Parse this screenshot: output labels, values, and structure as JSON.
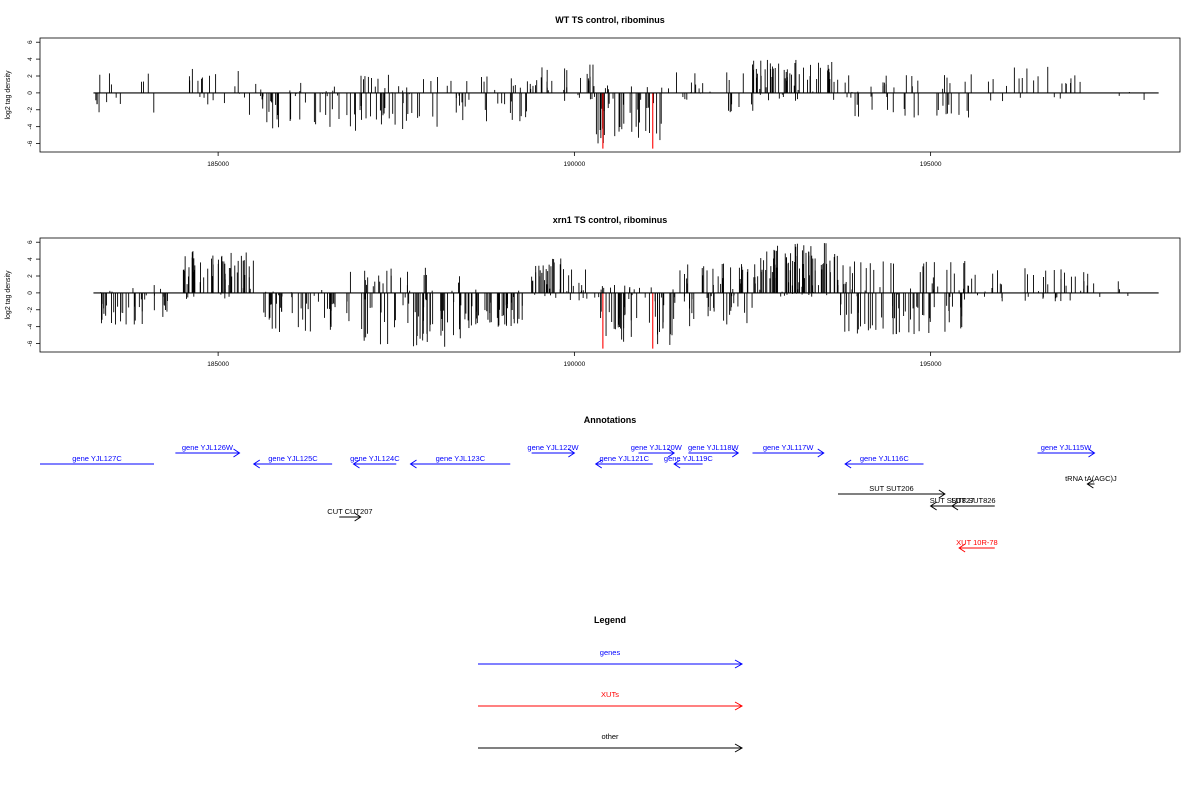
{
  "chart_data": [
    {
      "type": "bar",
      "title": "WT TS control, ribominus",
      "ylabel": "log2 tag density",
      "xlim": [
        182500,
        198500
      ],
      "ylim": [
        -7,
        6.5
      ],
      "xticks": [
        185000,
        190000,
        195000
      ],
      "xtick_labels": [
        "185000",
        "190000",
        "195000"
      ],
      "yticks": [
        6,
        4,
        2,
        0,
        -2,
        -4,
        -6
      ],
      "ytick_labels": [
        "6",
        "4",
        "2",
        "0",
        "-2",
        "-4",
        "-6"
      ],
      "baseline_range": [
        183250,
        198200
      ],
      "marker_color": "#ff0000",
      "markers": [
        {
          "x": 190400,
          "y": -6.6
        },
        {
          "x": 191100,
          "y": -6.6
        }
      ],
      "segments": [
        {
          "from": 183250,
          "to": 184300,
          "y_min": -3.0,
          "y_max": 2.8,
          "count": 14,
          "seed": 11
        },
        {
          "from": 184500,
          "to": 185400,
          "y_min": -1.5,
          "y_max": 3.2,
          "count": 18,
          "seed": 12
        },
        {
          "from": 185400,
          "to": 186700,
          "y_min": -4.2,
          "y_max": 1.2,
          "count": 40,
          "seed": 13
        },
        {
          "from": 186800,
          "to": 188200,
          "y_min": -4.5,
          "y_max": 2.6,
          "count": 45,
          "seed": 14
        },
        {
          "from": 188200,
          "to": 189400,
          "y_min": -3.5,
          "y_max": 2.0,
          "count": 35,
          "seed": 15
        },
        {
          "from": 189400,
          "to": 190300,
          "y_min": -1.0,
          "y_max": 3.5,
          "count": 28,
          "seed": 16
        },
        {
          "from": 190300,
          "to": 191400,
          "y_min": -6.0,
          "y_max": 1.0,
          "count": 40,
          "seed": 17
        },
        {
          "from": 191400,
          "to": 192600,
          "y_min": -2.5,
          "y_max": 2.5,
          "count": 22,
          "seed": 18
        },
        {
          "from": 192500,
          "to": 193700,
          "y_min": -1.0,
          "y_max": 4.0,
          "count": 60,
          "seed": 19
        },
        {
          "from": 193700,
          "to": 195600,
          "y_min": -3.0,
          "y_max": 2.2,
          "count": 45,
          "seed": 20
        },
        {
          "from": 195600,
          "to": 197500,
          "y_min": -1.0,
          "y_max": 3.2,
          "count": 22,
          "seed": 21
        },
        {
          "from": 197500,
          "to": 198100,
          "y_min": -1.0,
          "y_max": 1.2,
          "count": 3,
          "seed": 22
        }
      ]
    },
    {
      "type": "bar",
      "title": "xrn1 TS control, ribominus",
      "ylabel": "log2 tag density",
      "xlim": [
        182500,
        198500
      ],
      "ylim": [
        -7,
        6.5
      ],
      "xticks": [
        185000,
        190000,
        195000
      ],
      "xtick_labels": [
        "185000",
        "190000",
        "195000"
      ],
      "yticks": [
        6,
        4,
        2,
        0,
        -2,
        -4,
        -6
      ],
      "ytick_labels": [
        "6",
        "4",
        "2",
        "0",
        "-2",
        "-4",
        "-6"
      ],
      "baseline_range": [
        183250,
        198200
      ],
      "marker_color": "#ff0000",
      "markers": [
        {
          "x": 190400,
          "y": -6.6
        },
        {
          "x": 191100,
          "y": -6.6
        }
      ],
      "segments": [
        {
          "from": 183250,
          "to": 184300,
          "y_min": -3.8,
          "y_max": 1.0,
          "count": 40,
          "seed": 31
        },
        {
          "from": 184500,
          "to": 185500,
          "y_min": -1.0,
          "y_max": 5.0,
          "count": 60,
          "seed": 32
        },
        {
          "from": 185600,
          "to": 186700,
          "y_min": -5.0,
          "y_max": 0.5,
          "count": 45,
          "seed": 33
        },
        {
          "from": 186800,
          "to": 188400,
          "y_min": -6.5,
          "y_max": 3.0,
          "count": 75,
          "seed": 34
        },
        {
          "from": 188400,
          "to": 189300,
          "y_min": -4.2,
          "y_max": 0.5,
          "count": 45,
          "seed": 35
        },
        {
          "from": 189400,
          "to": 190300,
          "y_min": -1.0,
          "y_max": 4.2,
          "count": 45,
          "seed": 36
        },
        {
          "from": 190300,
          "to": 191400,
          "y_min": -6.2,
          "y_max": 1.0,
          "count": 55,
          "seed": 37
        },
        {
          "from": 191400,
          "to": 192500,
          "y_min": -4.0,
          "y_max": 3.5,
          "count": 55,
          "seed": 38
        },
        {
          "from": 192500,
          "to": 193700,
          "y_min": -0.5,
          "y_max": 6.0,
          "count": 90,
          "seed": 39
        },
        {
          "from": 193700,
          "to": 195500,
          "y_min": -5.0,
          "y_max": 3.8,
          "count": 90,
          "seed": 40
        },
        {
          "from": 195500,
          "to": 197500,
          "y_min": -1.0,
          "y_max": 3.0,
          "count": 45,
          "seed": 41
        },
        {
          "from": 197500,
          "to": 198100,
          "y_min": -2.0,
          "y_max": 3.0,
          "count": 3,
          "seed": 42
        }
      ]
    }
  ],
  "annotations": {
    "title": "Annotations",
    "colors": {
      "gene": "#0000ff",
      "xut": "#ff0000",
      "other": "#000000"
    },
    "features": [
      {
        "label": "gene YJL127C",
        "kind": "gene",
        "strand": "",
        "start": 182500,
        "end": 184100,
        "row": 1
      },
      {
        "label": "gene YJL126W",
        "kind": "gene",
        "strand": "+",
        "start": 184400,
        "end": 185300,
        "row": 0
      },
      {
        "label": "gene YJL125C",
        "kind": "gene",
        "strand": "-",
        "start": 185500,
        "end": 186600,
        "row": 1
      },
      {
        "label": "gene YJL124C",
        "kind": "gene",
        "strand": "-",
        "start": 186900,
        "end": 187500,
        "row": 1
      },
      {
        "label": "gene YJL123C",
        "kind": "gene",
        "strand": "-",
        "start": 187700,
        "end": 189100,
        "row": 1
      },
      {
        "label": "gene YJL122W",
        "kind": "gene",
        "strand": "+",
        "start": 189400,
        "end": 190000,
        "row": 0
      },
      {
        "label": "gene YJL121C",
        "kind": "gene",
        "strand": "-",
        "start": 190300,
        "end": 191100,
        "row": 1
      },
      {
        "label": "gene YJL120W",
        "kind": "gene",
        "strand": "+",
        "start": 190900,
        "end": 191400,
        "row": 0
      },
      {
        "label": "gene YJL119C",
        "kind": "gene",
        "strand": "-",
        "start": 191400,
        "end": 191800,
        "row": 1
      },
      {
        "label": "gene YJL118W",
        "kind": "gene",
        "strand": "+",
        "start": 191600,
        "end": 192300,
        "row": 0
      },
      {
        "label": "gene YJL117W",
        "kind": "gene",
        "strand": "+",
        "start": 192500,
        "end": 193500,
        "row": 0
      },
      {
        "label": "gene YJL116C",
        "kind": "gene",
        "strand": "-",
        "start": 193800,
        "end": 194900,
        "row": 1
      },
      {
        "label": "gene YJL115W",
        "kind": "gene",
        "strand": "+",
        "start": 196500,
        "end": 197300,
        "row": 0
      },
      {
        "label": "tRNA tA(AGC)J",
        "kind": "other",
        "strand": "-",
        "start": 197200,
        "end": 197300,
        "row": 2
      },
      {
        "label": "SUT SUT206",
        "kind": "other",
        "strand": "+",
        "start": 193700,
        "end": 195200,
        "row": 3
      },
      {
        "label": "SUT SUT827",
        "kind": "other",
        "strand": "-",
        "start": 195000,
        "end": 195600,
        "row": 4
      },
      {
        "label": "SUT SUT826",
        "kind": "other",
        "strand": "-",
        "start": 195300,
        "end": 195900,
        "row": 4
      },
      {
        "label": "CUT CUT207",
        "kind": "other",
        "strand": "+",
        "start": 186700,
        "end": 187000,
        "row": 5
      },
      {
        "label": "XUT 10R-78",
        "kind": "xut",
        "strand": "-",
        "start": 195400,
        "end": 195900,
        "row": 6
      }
    ]
  },
  "legend": {
    "title": "Legend",
    "items": [
      {
        "label": "genes",
        "color": "#0000ff"
      },
      {
        "label": "XUTs",
        "color": "#ff0000"
      },
      {
        "label": "other",
        "color": "#000000"
      }
    ]
  }
}
